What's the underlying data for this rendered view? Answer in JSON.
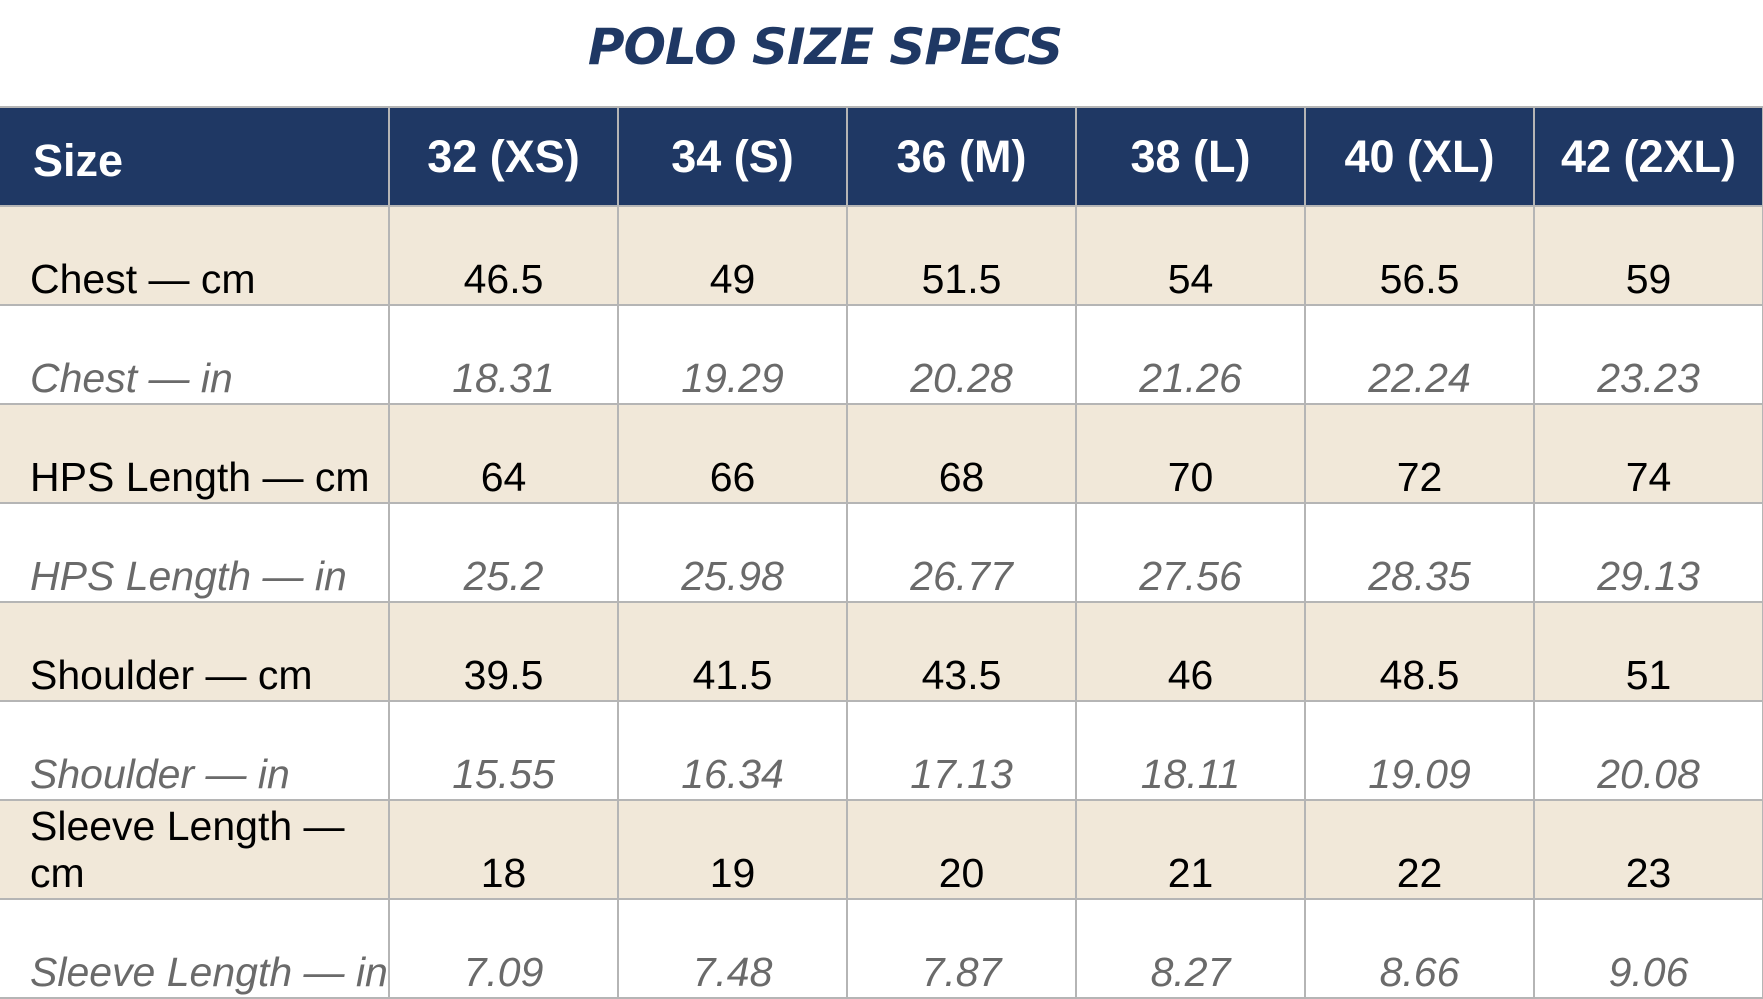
{
  "title": "POLO SIZE SPECS",
  "colors": {
    "header_bg": "#1f3864",
    "header_text": "#ffffff",
    "cm_row_bg": "#f1e8d9",
    "in_row_bg": "#ffffff",
    "in_row_text": "#6a6a6a",
    "grid": "#b5b5b5"
  },
  "table": {
    "header": [
      "Size",
      "32 (XS)",
      "34 (S)",
      "36 (M)",
      "38 (L)",
      "40 (XL)",
      "42 (2XL)"
    ],
    "rows": [
      {
        "label": "Chest — cm",
        "unit": "cm",
        "values": [
          "46.5",
          "49",
          "51.5",
          "54",
          "56.5",
          "59"
        ]
      },
      {
        "label": "Chest — in",
        "unit": "in",
        "values": [
          "18.31",
          "19.29",
          "20.28",
          "21.26",
          "22.24",
          "23.23"
        ]
      },
      {
        "label": "HPS Length — cm",
        "unit": "cm",
        "values": [
          "64",
          "66",
          "68",
          "70",
          "72",
          "74"
        ]
      },
      {
        "label": "HPS Length — in",
        "unit": "in",
        "values": [
          "25.2",
          "25.98",
          "26.77",
          "27.56",
          "28.35",
          "29.13"
        ]
      },
      {
        "label": "Shoulder — cm",
        "unit": "cm",
        "values": [
          "39.5",
          "41.5",
          "43.5",
          "46",
          "48.5",
          "51"
        ]
      },
      {
        "label": "Shoulder — in",
        "unit": "in",
        "values": [
          "15.55",
          "16.34",
          "17.13",
          "18.11",
          "19.09",
          "20.08"
        ]
      },
      {
        "label": "Sleeve Length — cm",
        "unit": "cm",
        "values": [
          "18",
          "19",
          "20",
          "21",
          "22",
          "23"
        ]
      },
      {
        "label": "Sleeve Length — in",
        "unit": "in",
        "values": [
          "7.09",
          "7.48",
          "7.87",
          "8.27",
          "8.66",
          "9.06"
        ]
      }
    ]
  }
}
